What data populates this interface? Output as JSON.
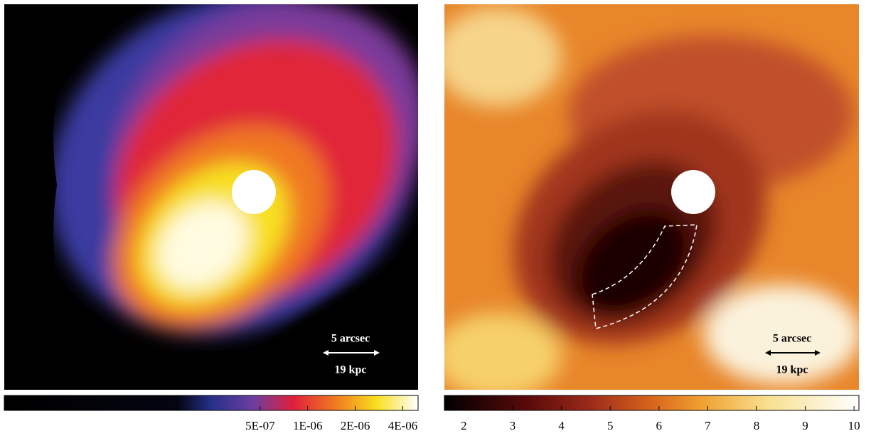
{
  "panels": [
    {
      "scale_bar": {
        "angular": "5 arcsec",
        "physical": "19 kpc"
      },
      "colorbar": {
        "scale": "log",
        "lim": [
          1.2e-08,
          5e-06
        ],
        "ticks": [
          {
            "value": 5e-07,
            "label": "5E-07"
          },
          {
            "value": 1e-06,
            "label": "1E-06"
          },
          {
            "value": 2e-06,
            "label": "2E-06"
          },
          {
            "value": 4e-06,
            "label": "4E-06"
          }
        ]
      }
    },
    {
      "scale_bar": {
        "angular": "5 arcsec",
        "physical": "19 kpc"
      },
      "colorbar": {
        "scale": "linear",
        "lim": [
          1.6,
          10.1
        ],
        "ticks": [
          2,
          3,
          4,
          5,
          6,
          7,
          8,
          9,
          10
        ]
      }
    }
  ]
}
